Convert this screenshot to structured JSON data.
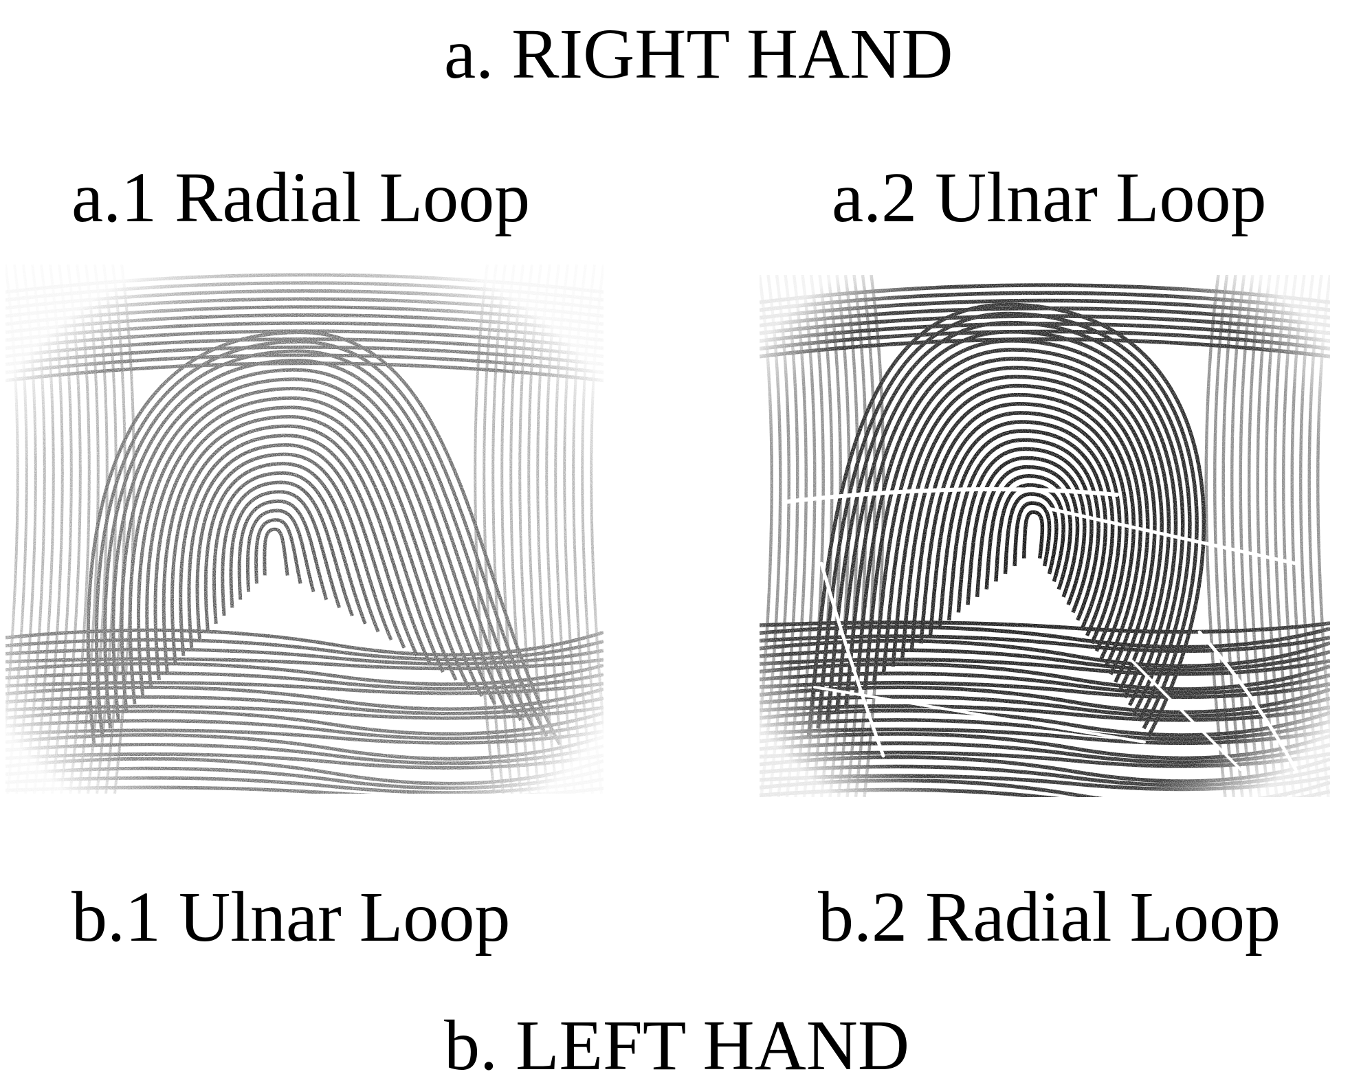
{
  "titles": {
    "right_hand": "a. RIGHT HAND",
    "left_hand": "b. LEFT HAND"
  },
  "labels": {
    "a1": "a.1 Radial Loop",
    "a2": "a.2 Ulnar Loop",
    "b1": "b.1 Ulnar Loop",
    "b2": "b.2 Radial Loop"
  },
  "colors": {
    "background": "#ffffff",
    "ridge_light": "#3a3a3a",
    "ridge_dark": "#111111",
    "text": "#000000"
  },
  "prints": [
    {
      "id": "a1",
      "pattern": "radial-loop",
      "tone": "light"
    },
    {
      "id": "a2",
      "pattern": "ulnar-loop",
      "tone": "dark"
    }
  ]
}
